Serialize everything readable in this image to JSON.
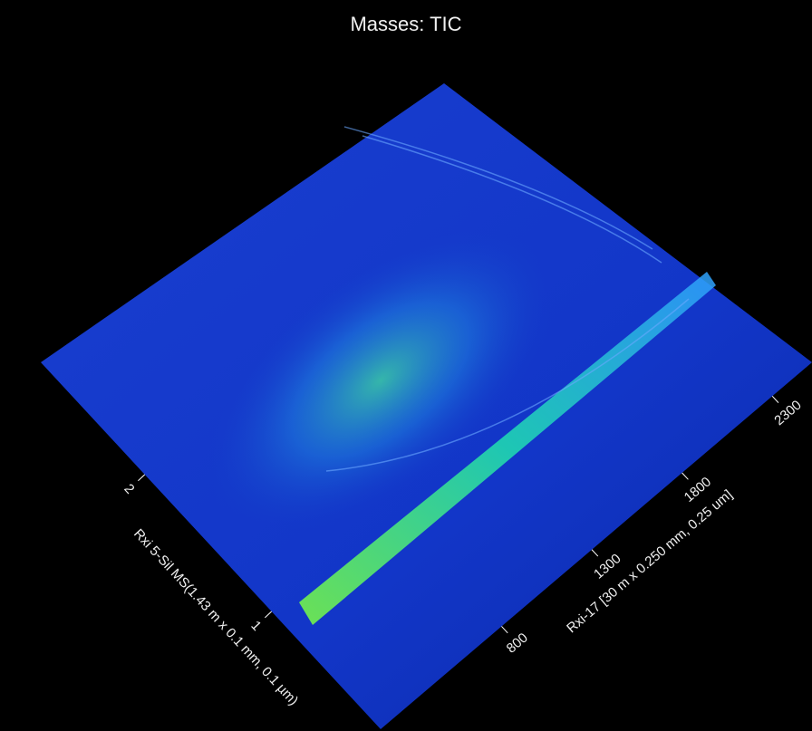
{
  "chart_data": {
    "type": "surface",
    "title": "Masses: TIC",
    "xlabel": "Rxi-17 [30 m x 0.250 mm, 0.25 um]",
    "ylabel": "Rxi 5-Sil MS(1.43 m x 0.1 mm, 0.1 µm)",
    "xlim": [
      130,
      2520
    ],
    "xticks": [
      800,
      1300,
      1800,
      2300
    ],
    "ylim": [
      0.14,
      2.82
    ],
    "yticks": [
      1,
      2
    ]
  }
}
